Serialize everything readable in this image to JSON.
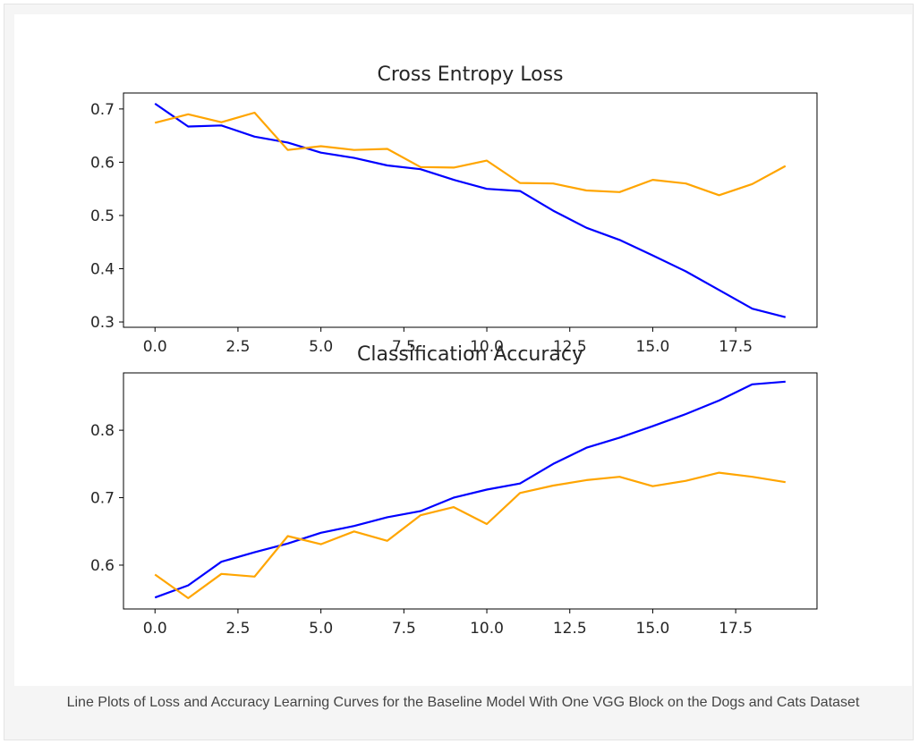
{
  "caption": "Line Plots of Loss and Accuracy Learning Curves for the Baseline Model With One VGG Block on the Dogs and Cats Dataset",
  "chart_data": [
    {
      "type": "line",
      "title": "Cross Entropy Loss",
      "xlabel": "",
      "ylabel": "",
      "xlim": [
        -0.95,
        19.95
      ],
      "ylim": [
        0.29,
        0.73
      ],
      "xticks": [
        "0.0",
        "2.5",
        "5.0",
        "7.5",
        "10.0",
        "12.5",
        "15.0",
        "17.5"
      ],
      "yticks": [
        "0.3",
        "0.4",
        "0.5",
        "0.6",
        "0.7"
      ],
      "x": [
        0,
        1,
        2,
        3,
        4,
        5,
        6,
        7,
        8,
        9,
        10,
        11,
        12,
        13,
        14,
        15,
        16,
        17,
        18,
        19
      ],
      "series": [
        {
          "color": "#0000ff",
          "values": [
            0.71,
            0.667,
            0.669,
            0.648,
            0.637,
            0.618,
            0.608,
            0.594,
            0.587,
            0.567,
            0.55,
            0.546,
            0.509,
            0.477,
            0.454,
            0.425,
            0.395,
            0.36,
            0.325,
            0.309
          ]
        },
        {
          "color": "#ffa500",
          "values": [
            0.674,
            0.69,
            0.675,
            0.693,
            0.623,
            0.63,
            0.623,
            0.625,
            0.591,
            0.59,
            0.603,
            0.561,
            0.56,
            0.547,
            0.544,
            0.567,
            0.56,
            0.538,
            0.559,
            0.593
          ]
        }
      ],
      "grid": false,
      "legend": "none"
    },
    {
      "type": "line",
      "title": "Classification Accuracy",
      "xlabel": "",
      "ylabel": "",
      "xlim": [
        -0.95,
        19.95
      ],
      "ylim": [
        0.535,
        0.885
      ],
      "xticks": [
        "0.0",
        "2.5",
        "5.0",
        "7.5",
        "10.0",
        "12.5",
        "15.0",
        "17.5"
      ],
      "yticks": [
        "0.6",
        "0.7",
        "0.8"
      ],
      "x": [
        0,
        1,
        2,
        3,
        4,
        5,
        6,
        7,
        8,
        9,
        10,
        11,
        12,
        13,
        14,
        15,
        16,
        17,
        18,
        19
      ],
      "series": [
        {
          "color": "#0000ff",
          "values": [
            0.552,
            0.57,
            0.605,
            0.619,
            0.632,
            0.648,
            0.658,
            0.671,
            0.68,
            0.7,
            0.712,
            0.721,
            0.75,
            0.774,
            0.789,
            0.806,
            0.824,
            0.844,
            0.868,
            0.872
          ]
        },
        {
          "color": "#ffa500",
          "values": [
            0.586,
            0.551,
            0.587,
            0.583,
            0.643,
            0.631,
            0.65,
            0.636,
            0.674,
            0.686,
            0.661,
            0.707,
            0.718,
            0.726,
            0.731,
            0.717,
            0.725,
            0.737,
            0.731,
            0.723
          ]
        }
      ],
      "grid": false,
      "legend": "none"
    }
  ]
}
